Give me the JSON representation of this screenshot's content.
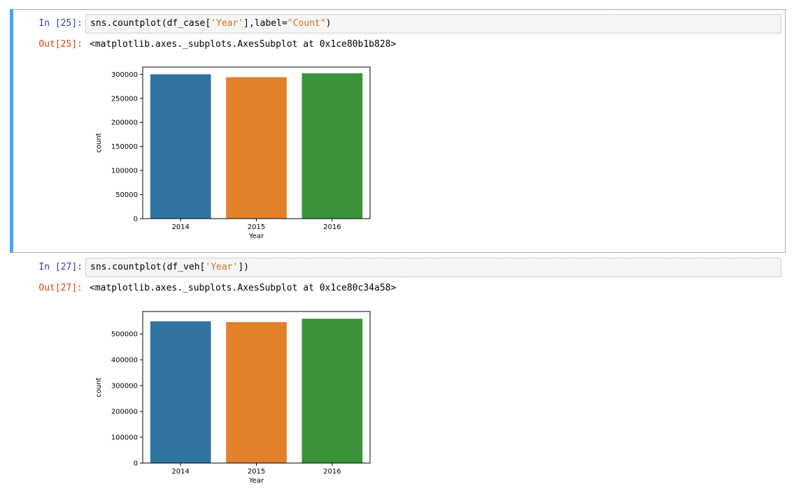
{
  "cells": [
    {
      "in_prompt": "In [25]:",
      "code_prefix": "sns.countplot(df_case[",
      "code_str1": "'Year'",
      "code_mid": "],label=",
      "code_str2": "\"Count\"",
      "code_suffix": ")",
      "out_prompt": "Out[25]:",
      "out_text": "<matplotlib.axes._subplots.AxesSubplot at 0x1ce80b1b828>"
    },
    {
      "in_prompt": "In [27]:",
      "code_prefix": "sns.countplot(df_veh[",
      "code_str1": "'Year'",
      "code_suffix": "])",
      "out_prompt": "Out[27]:",
      "out_text": "<matplotlib.axes._subplots.AxesSubplot at 0x1ce80c34a58>"
    }
  ],
  "colors": {
    "cell_selected_border": "#42a5f5",
    "in_prompt": "#303f9f",
    "out_prompt": "#d84315",
    "bar_2014": "#3274a1",
    "bar_2015": "#e1812c",
    "bar_2016": "#3a923a"
  },
  "chart_data": [
    {
      "type": "bar",
      "categories": [
        "2014",
        "2015",
        "2016"
      ],
      "values": [
        300000,
        294000,
        302000
      ],
      "colors": [
        "#3274a1",
        "#e1812c",
        "#3a923a"
      ],
      "title": "",
      "xlabel": "Year",
      "ylabel": "count",
      "ylim": [
        0,
        315000
      ],
      "yticks": [
        0,
        50000,
        100000,
        150000,
        200000,
        250000,
        300000
      ]
    },
    {
      "type": "bar",
      "categories": [
        "2014",
        "2015",
        "2016"
      ],
      "values": [
        549000,
        546000,
        559000
      ],
      "colors": [
        "#3274a1",
        "#e1812c",
        "#3a923a"
      ],
      "title": "",
      "xlabel": "Year",
      "ylabel": "count",
      "ylim": [
        0,
        587000
      ],
      "yticks": [
        0,
        100000,
        200000,
        300000,
        400000,
        500000
      ]
    }
  ]
}
